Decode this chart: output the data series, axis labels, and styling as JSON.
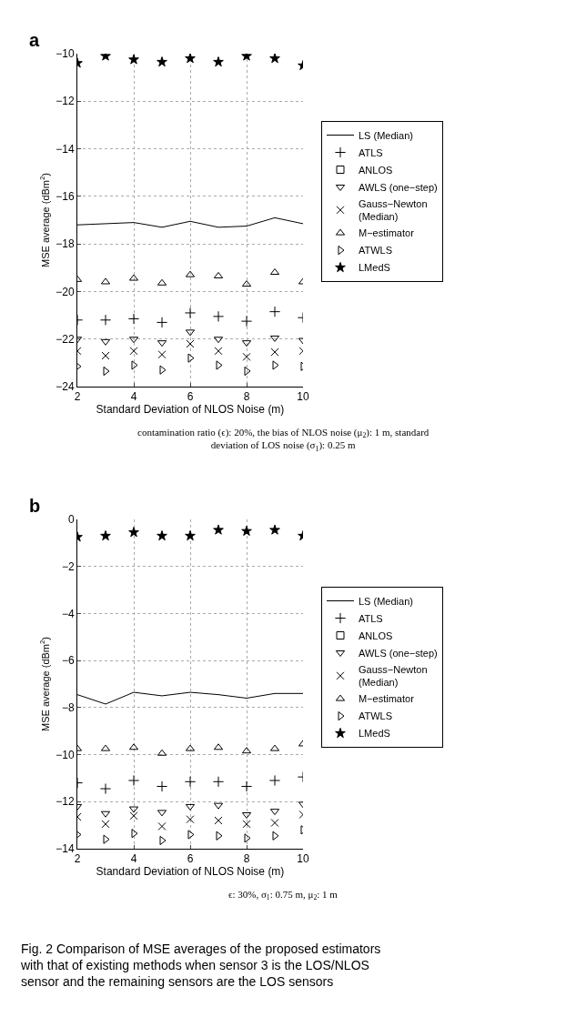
{
  "chart_data": [
    {
      "type": "scatter",
      "title": "a",
      "xlabel": "Standard Deviation of NLOS Noise (m)",
      "ylabel": "MSE average (dBm$^{2}$)",
      "x": [
        2,
        3,
        4,
        5,
        6,
        7,
        8,
        9,
        10
      ],
      "xlim": [
        2,
        10
      ],
      "xticks": [
        2,
        4,
        6,
        8,
        10
      ],
      "ylim": [
        -24,
        -10
      ],
      "yticks": [
        -24,
        -22,
        -20,
        -18,
        -16,
        -14,
        -12,
        -10
      ],
      "grid": true,
      "legend": "right",
      "annotations": [
        "contamination ratio (ϵ): 20%, the bias of NLOS noise (μ$_{2}$): 1 m, standard deviation of LOS noise (σ$_{1}$): 0.25 m"
      ],
      "series": [
        {
          "name": "LS (Median)",
          "type": "line",
          "line_style": "solid",
          "color": "#000000",
          "values": [
            -17.2,
            -17.15,
            -17.1,
            -17.3,
            -17.05,
            -17.3,
            -17.25,
            -16.9,
            -17.15
          ]
        },
        {
          "name": "ATLS",
          "marker": "cross",
          "color": "#000000",
          "values": [
            -21.2,
            -21.2,
            -21.15,
            -21.3,
            -20.9,
            -21.05,
            -21.25,
            -20.85,
            -21.1
          ]
        },
        {
          "name": "ANLOS",
          "marker": "square",
          "color": "#000000",
          "values": [
            null,
            null,
            null,
            null,
            null,
            null,
            null,
            null,
            null
          ]
        },
        {
          "name": "AWLS (one−step)",
          "marker": "triangle-down",
          "color": "#000000",
          "values": [
            -22.0,
            -22.1,
            -22.0,
            -22.15,
            -21.7,
            -22.0,
            -22.15,
            -21.95,
            -22.05
          ]
        },
        {
          "name": "Gauss−Newton (Median)",
          "marker": "x",
          "color": "#000000",
          "values": [
            -22.5,
            -22.7,
            -22.5,
            -22.65,
            -22.2,
            -22.5,
            -22.75,
            -22.55,
            -22.5
          ]
        },
        {
          "name": "M−estimator",
          "marker": "triangle",
          "color": "#000000",
          "values": [
            -19.5,
            -19.6,
            -19.45,
            -19.65,
            -19.3,
            -19.35,
            -19.7,
            -19.2,
            -19.6
          ]
        },
        {
          "name": "ATWLS",
          "marker": "triangle-right",
          "color": "#000000",
          "values": [
            -23.15,
            -23.35,
            -23.1,
            -23.3,
            -22.8,
            -23.1,
            -23.35,
            -23.1,
            -23.15
          ]
        },
        {
          "name": "LMedS",
          "marker": "star",
          "color": "#000000",
          "values": [
            -10.4,
            -10.1,
            -10.25,
            -10.35,
            -10.2,
            -10.35,
            -10.1,
            -10.2,
            -10.5
          ]
        }
      ]
    },
    {
      "type": "scatter",
      "title": "b",
      "xlabel": "Standard Deviation of NLOS Noise (m)",
      "ylabel": "MSE average (dBm$^{2}$)",
      "x": [
        2,
        3,
        4,
        5,
        6,
        7,
        8,
        9,
        10
      ],
      "xlim": [
        2,
        10
      ],
      "xticks": [
        2,
        4,
        6,
        8,
        10
      ],
      "ylim": [
        -14,
        0
      ],
      "yticks": [
        -14,
        -12,
        -10,
        -8,
        -6,
        -4,
        -2,
        0
      ],
      "grid": true,
      "legend": "right",
      "annotations": [
        "ϵ: 30%, σ$_{1}$: 0.75 m, μ$_{2}$: 1 m",
        "Fig. 2 Comparison of MSE averages of the proposed estimators with that of existing methods when sensor 3 is the LOS/NLOS sensor and the remaining sensors are the LOS sensors"
      ],
      "series": [
        {
          "name": "LS (Median)",
          "type": "line",
          "line_style": "solid",
          "color": "#000000",
          "values": [
            -7.45,
            -7.85,
            -7.35,
            -7.5,
            -7.35,
            -7.45,
            -7.6,
            -7.4,
            -7.4
          ]
        },
        {
          "name": "ATLS",
          "marker": "cross",
          "color": "#000000",
          "values": [
            -11.2,
            -11.45,
            -11.1,
            -11.35,
            -11.15,
            -11.15,
            -11.35,
            -11.1,
            -10.95
          ]
        },
        {
          "name": "ANLOS",
          "marker": "square",
          "color": "#000000",
          "values": [
            null,
            null,
            null,
            null,
            null,
            null,
            null,
            null,
            null
          ]
        },
        {
          "name": "AWLS (one−step)",
          "marker": "triangle-down",
          "color": "#000000",
          "values": [
            -12.2,
            -12.5,
            -12.3,
            -12.45,
            -12.2,
            -12.15,
            -12.55,
            -12.4,
            -12.1
          ]
        },
        {
          "name": "Gauss−Newton (Median)",
          "marker": "x",
          "color": "#000000",
          "values": [
            -12.65,
            -12.95,
            -12.6,
            -13.05,
            -12.75,
            -12.8,
            -12.95,
            -12.9,
            -12.55
          ]
        },
        {
          "name": "M−estimator",
          "marker": "triangle",
          "color": "#000000",
          "values": [
            -9.75,
            -9.75,
            -9.7,
            -9.95,
            -9.75,
            -9.7,
            -9.85,
            -9.75,
            -9.55
          ]
        },
        {
          "name": "ATWLS",
          "marker": "triangle-right",
          "color": "#000000",
          "values": [
            -13.4,
            -13.6,
            -13.35,
            -13.65,
            -13.4,
            -13.45,
            -13.55,
            -13.45,
            -13.2
          ]
        },
        {
          "name": "LMedS",
          "marker": "star",
          "color": "#000000",
          "values": [
            -0.75,
            -0.7,
            -0.55,
            -0.7,
            -0.7,
            -0.45,
            -0.5,
            -0.45,
            -0.7
          ]
        }
      ]
    }
  ]
}
